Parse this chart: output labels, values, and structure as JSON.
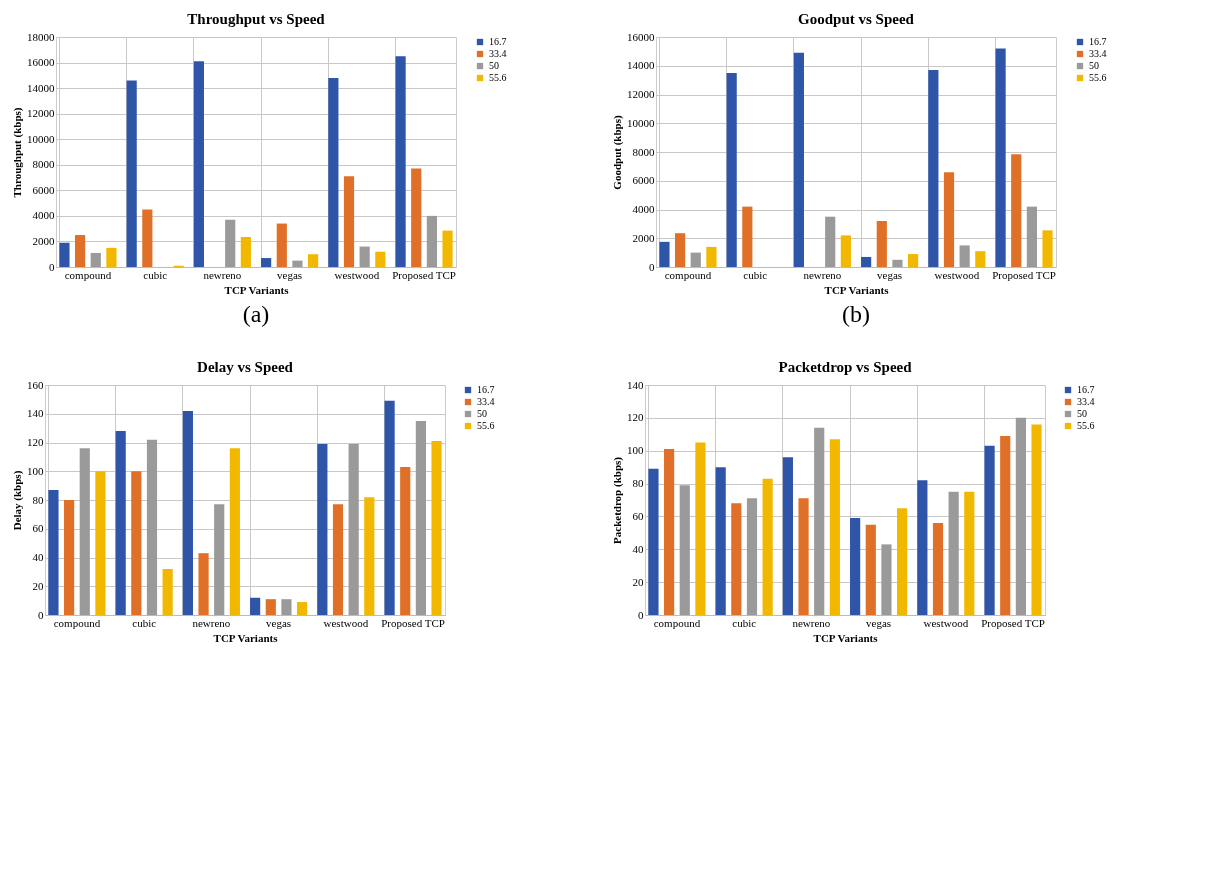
{
  "chart_data": [
    {
      "type": "bar",
      "title": "Throughput vs Speed",
      "xlabel": "TCP Variants",
      "ylabel": "Throughput (kbps)",
      "annotations": [
        "(a)"
      ],
      "categories": [
        "compound",
        "cubic",
        "newreno",
        "vegas",
        "westwood",
        "Proposed TCP"
      ],
      "series": [
        {
          "name": "16.7",
          "color": "#2f55a8",
          "values": [
            1900,
            14600,
            16100,
            700,
            14800,
            16500
          ]
        },
        {
          "name": "33.4",
          "color": "#e07028",
          "values": [
            2500,
            4500,
            0,
            3400,
            7100,
            7700
          ]
        },
        {
          "name": "50",
          "color": "#9a9a9a",
          "values": [
            1100,
            0,
            3700,
            500,
            1600,
            4000
          ]
        },
        {
          "name": "55.6",
          "color": "#f2b800",
          "values": [
            1500,
            100,
            2350,
            1000,
            1200,
            2850
          ]
        }
      ],
      "ylim": [
        0,
        18000
      ],
      "yticks": [
        0,
        2000,
        4000,
        6000,
        8000,
        10000,
        12000,
        14000,
        16000,
        18000
      ],
      "grid": true,
      "legend": "right"
    },
    {
      "type": "bar",
      "title": "Goodput vs Speed",
      "xlabel": "TCP Variants",
      "ylabel": "Goodput (kbps)",
      "annotations": [
        "(b)"
      ],
      "categories": [
        "compound",
        "cubic",
        "newreno",
        "vegas",
        "westwood",
        "Proposed TCP"
      ],
      "series": [
        {
          "name": "16.7",
          "color": "#2f55a8",
          "values": [
            1750,
            13500,
            14900,
            700,
            13700,
            15200
          ]
        },
        {
          "name": "33.4",
          "color": "#e07028",
          "values": [
            2350,
            4200,
            0,
            3200,
            6600,
            7850
          ]
        },
        {
          "name": "50",
          "color": "#9a9a9a",
          "values": [
            1000,
            0,
            3500,
            500,
            1500,
            4200
          ]
        },
        {
          "name": "55.6",
          "color": "#f2b800",
          "values": [
            1400,
            0,
            2200,
            900,
            1100,
            2550
          ]
        }
      ],
      "ylim": [
        0,
        16000
      ],
      "yticks": [
        0,
        2000,
        4000,
        6000,
        8000,
        10000,
        12000,
        14000,
        16000
      ],
      "grid": true,
      "legend": "right"
    },
    {
      "type": "bar",
      "title": "Delay vs Speed",
      "xlabel": "TCP Variants",
      "ylabel": "Delay (kbps)",
      "categories": [
        "compound",
        "cubic",
        "newreno",
        "vegas",
        "westwood",
        "Proposed TCP"
      ],
      "series": [
        {
          "name": "16.7",
          "color": "#2f55a8",
          "values": [
            87,
            128,
            142,
            12,
            119,
            149
          ]
        },
        {
          "name": "33.4",
          "color": "#e07028",
          "values": [
            80,
            100,
            43,
            11,
            77,
            103
          ]
        },
        {
          "name": "50",
          "color": "#9a9a9a",
          "values": [
            116,
            122,
            77,
            11,
            119,
            135
          ]
        },
        {
          "name": "55.6",
          "color": "#f2b800",
          "values": [
            100,
            32,
            116,
            9,
            82,
            121
          ]
        }
      ],
      "ylim": [
        0,
        160
      ],
      "yticks": [
        0,
        20,
        40,
        60,
        80,
        100,
        120,
        140,
        160
      ],
      "grid": true,
      "legend": "right"
    },
    {
      "type": "bar",
      "title": "Packetdrop vs Speed",
      "xlabel": "TCP Variants",
      "ylabel": "Packetdrop (kbps)",
      "categories": [
        "compound",
        "cubic",
        "newreno",
        "vegas",
        "westwood",
        "Proposed TCP"
      ],
      "series": [
        {
          "name": "16.7",
          "color": "#2f55a8",
          "values": [
            89,
            90,
            96,
            59,
            82,
            103
          ]
        },
        {
          "name": "33.4",
          "color": "#e07028",
          "values": [
            101,
            68,
            71,
            55,
            56,
            109
          ]
        },
        {
          "name": "50",
          "color": "#9a9a9a",
          "values": [
            79,
            71,
            114,
            43,
            75,
            120
          ]
        },
        {
          "name": "55.6",
          "color": "#f2b800",
          "values": [
            105,
            83,
            107,
            65,
            75,
            116
          ]
        }
      ],
      "ylim": [
        0,
        140
      ],
      "yticks": [
        0,
        20,
        40,
        60,
        80,
        100,
        120,
        140
      ],
      "grid": true,
      "legend": "right"
    }
  ]
}
